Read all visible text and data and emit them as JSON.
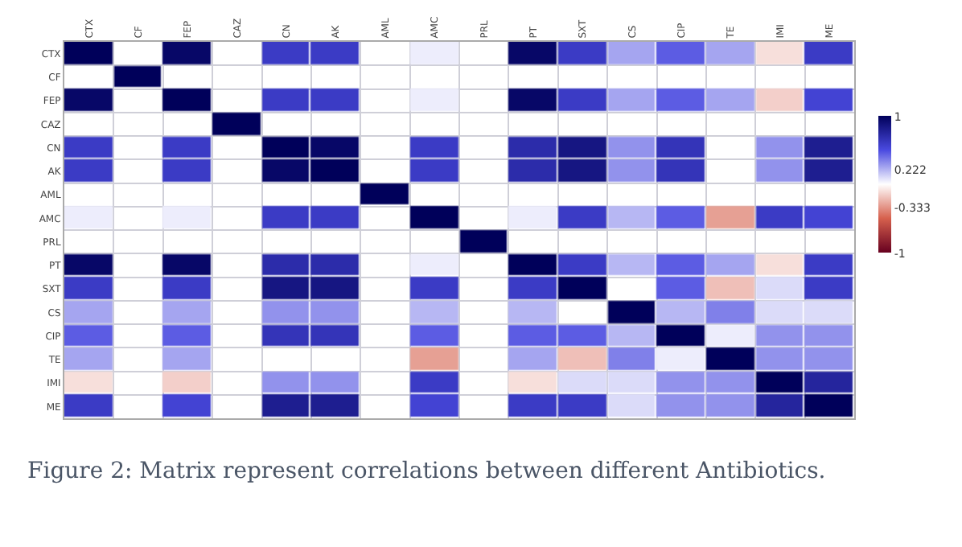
{
  "chart_data": {
    "type": "heatmap",
    "categories": [
      "CTX",
      "CF",
      "FEP",
      "CAZ",
      "CN",
      "AK",
      "AML",
      "AMC",
      "PRL",
      "PT",
      "SXT",
      "CS",
      "CIP",
      "TE",
      "IMI",
      "ME"
    ],
    "y_categories": [
      "CTX",
      "CF",
      "FEP",
      "CAZ",
      "CN",
      "AK",
      "AML",
      "AMC",
      "PRL",
      "PT",
      "SXT",
      "CS",
      "CIP",
      "TE",
      "IMI",
      "ME"
    ],
    "cells": [
      [
        1,
        null,
        0.95,
        null,
        0.6,
        0.6,
        null,
        0.05,
        null,
        0.95,
        0.6,
        0.25,
        0.45,
        0.25,
        -0.1,
        0.6
      ],
      [
        null,
        1,
        null,
        null,
        null,
        null,
        null,
        null,
        null,
        null,
        null,
        null,
        null,
        null,
        null,
        null
      ],
      [
        0.95,
        null,
        1,
        null,
        0.6,
        0.6,
        null,
        0.05,
        null,
        0.95,
        0.6,
        0.25,
        0.45,
        0.25,
        -0.15,
        0.55
      ],
      [
        null,
        null,
        null,
        1,
        null,
        null,
        null,
        null,
        null,
        null,
        null,
        null,
        null,
        null,
        null,
        null
      ],
      [
        0.6,
        null,
        0.6,
        null,
        1,
        0.95,
        null,
        0.6,
        null,
        0.7,
        0.85,
        0.3,
        0.65,
        null,
        0.3,
        0.8
      ],
      [
        0.6,
        null,
        0.6,
        null,
        0.95,
        1,
        null,
        0.6,
        null,
        0.7,
        0.85,
        0.3,
        0.65,
        null,
        0.3,
        0.8
      ],
      [
        null,
        null,
        null,
        null,
        null,
        null,
        1,
        null,
        null,
        null,
        null,
        null,
        null,
        null,
        null,
        null
      ],
      [
        0.05,
        null,
        0.05,
        null,
        0.6,
        0.6,
        null,
        1,
        null,
        0.05,
        0.6,
        0.2,
        0.45,
        -0.3,
        0.6,
        0.55
      ],
      [
        null,
        null,
        null,
        null,
        null,
        null,
        null,
        null,
        1,
        null,
        null,
        null,
        null,
        null,
        null,
        null
      ],
      [
        0.95,
        null,
        0.95,
        null,
        0.7,
        0.7,
        null,
        0.05,
        null,
        1,
        0.6,
        0.2,
        0.45,
        0.25,
        -0.1,
        0.6
      ],
      [
        0.6,
        null,
        0.6,
        null,
        0.85,
        0.85,
        null,
        0.6,
        null,
        0.6,
        1,
        null,
        0.45,
        -0.2,
        0.1,
        0.6
      ],
      [
        0.25,
        null,
        0.25,
        null,
        0.3,
        0.3,
        null,
        0.2,
        null,
        0.2,
        null,
        1,
        0.2,
        0.35,
        0.1,
        0.1
      ],
      [
        0.45,
        null,
        0.45,
        null,
        0.65,
        0.65,
        null,
        0.45,
        null,
        0.45,
        0.45,
        0.2,
        1,
        0.05,
        0.3,
        0.3
      ],
      [
        0.25,
        null,
        0.25,
        null,
        null,
        null,
        null,
        -0.3,
        null,
        0.25,
        -0.2,
        0.35,
        0.05,
        1,
        0.3,
        0.3
      ],
      [
        -0.1,
        null,
        -0.15,
        null,
        0.3,
        0.3,
        null,
        0.6,
        null,
        -0.1,
        0.1,
        0.1,
        0.3,
        0.3,
        1,
        0.75
      ],
      [
        0.6,
        null,
        0.55,
        null,
        0.8,
        0.8,
        null,
        0.55,
        null,
        0.6,
        0.6,
        0.1,
        0.3,
        0.3,
        0.75,
        1
      ]
    ],
    "clim": [
      -1,
      1
    ],
    "cticks": [
      1,
      0.222,
      -0.333,
      -1
    ],
    "grid": true,
    "annotations": [
      "Figure 2: Matrix represent correlations between different Antibiotics."
    ]
  }
}
